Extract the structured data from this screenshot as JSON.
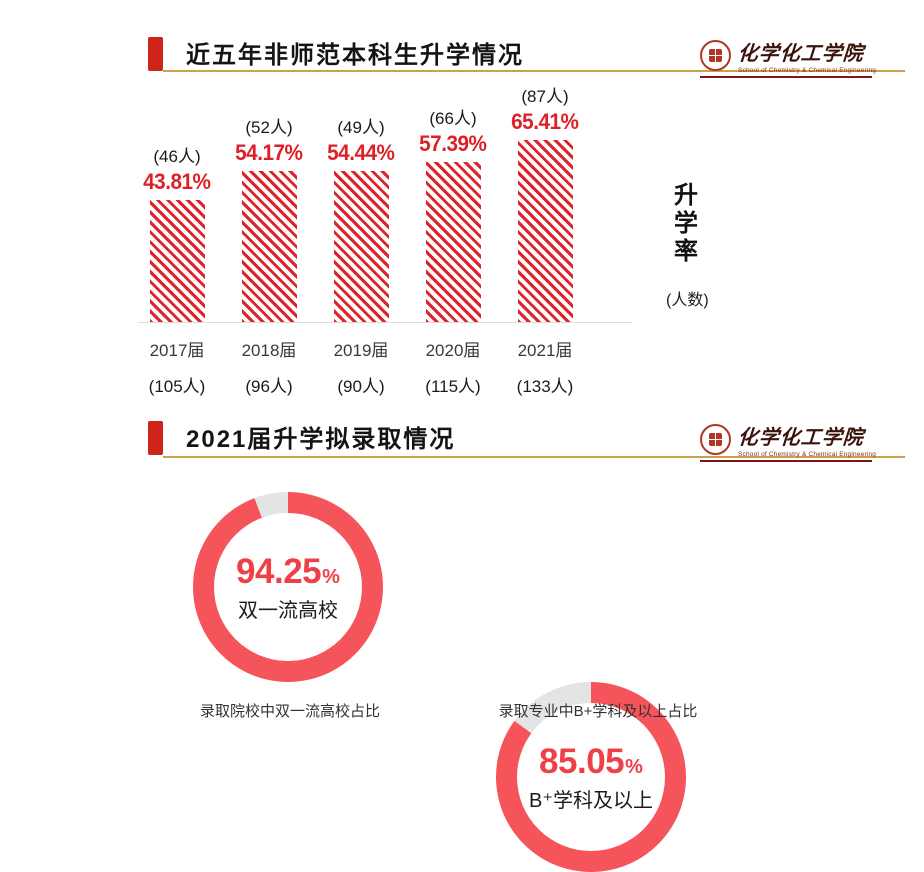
{
  "colors": {
    "accent_red": "#ce2318",
    "bar_red": "#dd242b",
    "label_red": "#dd2027",
    "gold": "#c9a24b",
    "maroon": "#7e1818",
    "donut_red": "#f4545a",
    "donut_gray": "#e4e4e4",
    "donut_num_red": "#ee4046"
  },
  "logo": {
    "name": "化学化工学院",
    "subtitle": "School of Chemistry & Chemical Engineering",
    "seal": "school-seal"
  },
  "section1": {
    "title": "近五年非师范本科生升学情况",
    "y_axis_label": "升学率",
    "y_axis_sublabel": "(人数)"
  },
  "section2": {
    "title": "2021届升学拟录取情况"
  },
  "chart_data": [
    {
      "type": "bar",
      "title": "近五年非师范本科生升学情况",
      "categories": [
        "2017届",
        "2018届",
        "2019届",
        "2020届",
        "2021届"
      ],
      "values": [
        43.81,
        54.17,
        54.44,
        57.39,
        65.41
      ],
      "value_labels": [
        "43.81%",
        "54.17%",
        "54.44%",
        "57.39%",
        "65.41%"
      ],
      "admitted_count_labels": [
        "(46人)",
        "(52人)",
        "(49人)",
        "(66人)",
        "(87人)"
      ],
      "cohort_size_labels": [
        "(105人)",
        "(96人)",
        "(90人)",
        "(115人)",
        "(133人)"
      ],
      "ylabel": "升学率",
      "ylabel_sub": "(人数)",
      "ylim": [
        0,
        70
      ],
      "grid": false,
      "bar_style": "red-diagonal-hatch"
    },
    {
      "type": "pie",
      "title": "2021届升学拟录取情况",
      "subtype": "donut",
      "donuts": [
        {
          "value": 94.25,
          "value_label": "94.25",
          "unit": "%",
          "label": "双一流高校",
          "caption": "录取院校中双一流高校占比"
        },
        {
          "value": 85.05,
          "value_label": "85.05",
          "unit": "%",
          "label": "B⁺学科及以上",
          "caption": "录取专业中B+学科及以上占比"
        }
      ]
    }
  ]
}
